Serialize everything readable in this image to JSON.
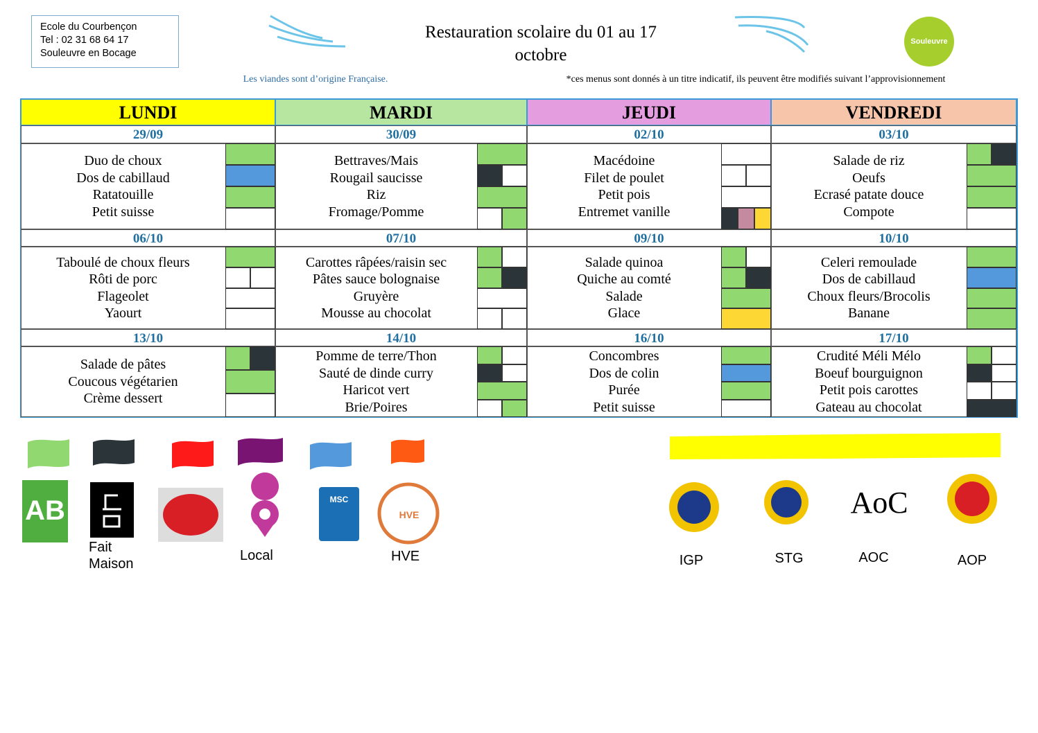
{
  "header": {
    "school": [
      "Ecole du Courbençon",
      "Tel : 02 31 68 64 17",
      "Souleuvre en Bocage"
    ],
    "title": [
      "Restauration scolaire du 01 au 17",
      "octobre"
    ],
    "logo": "Souleuvre",
    "note_left": "Les viandes sont d’origine Française.",
    "note_right": "*ces menus sont donnés à un titre indicatif, ils peuvent être modifiés suivant l’approvisionnement"
  },
  "table": {
    "days": [
      {
        "name": "LUNDI",
        "color": "#ffff00"
      },
      {
        "name": "MARDI",
        "color": "#b6e6a0"
      },
      {
        "name": "JEUDI",
        "color": "#e49ee0"
      },
      {
        "name": "VENDREDI",
        "color": "#f6c5aa"
      }
    ],
    "weeks": [
      [
        {
          "date": "29/09",
          "items": [
            {
              "label": "Duo de choux",
              "flags": [
                "#92d870"
              ]
            },
            {
              "label": "Dos de cabillaud",
              "flags": [
                "#5599dd"
              ]
            },
            {
              "label": "Ratatouille",
              "flags": [
                "#92d870"
              ]
            },
            {
              "label": "Petit suisse",
              "flags": [
                "#ffffff"
              ]
            }
          ]
        },
        {
          "date": "30/09",
          "items": [
            {
              "label": "Bettraves/Mais",
              "flags": [
                "#92d870"
              ]
            },
            {
              "label": "Rougail saucisse",
              "flags": [
                "#2a3439",
                "#ffffff"
              ]
            },
            {
              "label": "Riz",
              "flags": [
                "#92d870"
              ]
            },
            {
              "label": "Fromage/Pomme",
              "flags": [
                "#ffffff",
                "#92d870"
              ]
            }
          ]
        },
        {
          "date": "02/10",
          "items": [
            {
              "label": "Macédoine",
              "flags": [
                "#ffffff"
              ]
            },
            {
              "label": "Filet de poulet",
              "flags": [
                "#ffffff",
                "#ffffff"
              ]
            },
            {
              "label": "Petit pois",
              "flags": [
                "#ffffff"
              ]
            },
            {
              "label": "Entremet vanille",
              "flags": [
                "#2a3439",
                "#c48a9f",
                "#fdd835"
              ]
            }
          ]
        },
        {
          "date": "03/10",
          "items": [
            {
              "label": "Salade de riz",
              "flags": [
                "#92d870",
                "#2a3439"
              ]
            },
            {
              "label": "Oeufs",
              "flags": [
                "#92d870"
              ]
            },
            {
              "label": "Ecrasé patate douce",
              "flags": [
                "#92d870"
              ]
            },
            {
              "label": "Compote",
              "flags": [
                "#ffffff"
              ]
            }
          ]
        }
      ],
      [
        {
          "date": "06/10",
          "items": [
            {
              "label": "Taboulé de choux fleurs",
              "flags": [
                "#92d870"
              ]
            },
            {
              "label": "Rôti de porc",
              "flags": [
                "#ffffff",
                "#ffffff"
              ]
            },
            {
              "label": "Flageolet",
              "flags": [
                "#ffffff"
              ]
            },
            {
              "label": "Yaourt",
              "flags": [
                "#ffffff"
              ]
            }
          ]
        },
        {
          "date": "07/10",
          "items": [
            {
              "label": "Carottes râpées/raisin sec",
              "flags": [
                "#92d870",
                "#ffffff"
              ]
            },
            {
              "label": "Pâtes sauce bolognaise",
              "flags": [
                "#92d870",
                "#2a3439"
              ]
            },
            {
              "label": "Gruyère",
              "flags": [
                "#ffffff"
              ]
            },
            {
              "label": "Mousse au chocolat",
              "flags": [
                "#ffffff",
                "#ffffff"
              ]
            }
          ]
        },
        {
          "date": "09/10",
          "items": [
            {
              "label": "Salade quinoa",
              "flags": [
                "#92d870",
                "#ffffff"
              ]
            },
            {
              "label": "Quiche au comté",
              "flags": [
                "#92d870",
                "#2a3439"
              ]
            },
            {
              "label": "Salade",
              "flags": [
                "#92d870"
              ]
            },
            {
              "label": "Glace",
              "flags": [
                "#fdd835"
              ]
            }
          ]
        },
        {
          "date": "10/10",
          "items": [
            {
              "label": "Celeri remoulade",
              "flags": [
                "#92d870"
              ]
            },
            {
              "label": "Dos de cabillaud",
              "flags": [
                "#5599dd"
              ]
            },
            {
              "label": "Choux fleurs/Brocolis",
              "flags": [
                "#92d870"
              ]
            },
            {
              "label": "Banane",
              "flags": [
                "#92d870"
              ]
            }
          ]
        }
      ],
      [
        {
          "date": "13/10",
          "items": [
            {
              "label": "Salade de pâtes",
              "flags": [
                "#92d870",
                "#2a3439"
              ]
            },
            {
              "label": "Coucous végétarien",
              "flags": [
                "#92d870"
              ]
            },
            {
              "label": "Crème dessert",
              "flags": [
                "#ffffff"
              ]
            }
          ]
        },
        {
          "date": "14/10",
          "items": [
            {
              "label": "Pomme de terre/Thon",
              "flags": [
                "#92d870",
                "#ffffff"
              ]
            },
            {
              "label": "Sauté de dinde curry",
              "flags": [
                "#2a3439",
                "#ffffff"
              ]
            },
            {
              "label": "Haricot vert",
              "flags": [
                "#92d870"
              ]
            },
            {
              "label": "Brie/Poires",
              "flags": [
                "#ffffff",
                "#92d870"
              ]
            }
          ]
        },
        {
          "date": "16/10",
          "items": [
            {
              "label": "Concombres",
              "flags": [
                "#92d870"
              ]
            },
            {
              "label": "Dos de colin",
              "flags": [
                "#5599dd"
              ]
            },
            {
              "label": "Purée",
              "flags": [
                "#92d870"
              ]
            },
            {
              "label": "Petit suisse",
              "flags": [
                "#ffffff"
              ]
            }
          ]
        },
        {
          "date": "17/10",
          "items": [
            {
              "label": "Crudité Méli Mélo",
              "flags": [
                "#92d870",
                "#ffffff"
              ]
            },
            {
              "label": "Boeuf bourguignon",
              "flags": [
                "#2a3439",
                "#ffffff"
              ]
            },
            {
              "label": "Petit pois carottes",
              "flags": [
                "#ffffff",
                "#ffffff"
              ]
            },
            {
              "label": "Gateau au chocolat",
              "flags": [
                "#2a3439"
              ]
            }
          ]
        }
      ]
    ]
  },
  "legend": {
    "ab": "AB",
    "fait_maison": [
      "Fait",
      "Maison"
    ],
    "local": "Local",
    "msc": "MSC",
    "hve": "HVE",
    "aoc_logo": "AoC",
    "labels": [
      "IGP",
      "STG",
      "AOC",
      "AOP"
    ]
  }
}
